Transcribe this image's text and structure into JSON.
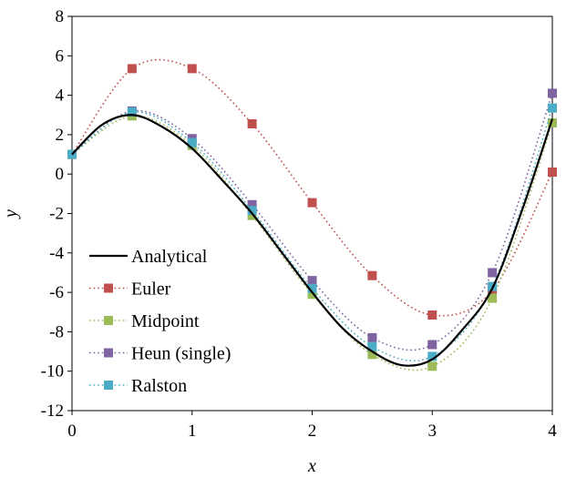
{
  "chart_data": {
    "type": "line",
    "xlabel": "x",
    "ylabel": "y",
    "xlim": [
      0,
      4
    ],
    "ylim": [
      -12,
      8
    ],
    "x_ticks": [
      0,
      1,
      2,
      3,
      4
    ],
    "y_ticks": [
      -12,
      -10,
      -8,
      -6,
      -4,
      -2,
      0,
      2,
      4,
      6,
      8
    ],
    "grid": false,
    "legend_position": "bottom-left",
    "series": [
      {
        "name": "Analytical",
        "style": "solid",
        "color": "#000000",
        "x": [
          0,
          0.25,
          0.5,
          0.75,
          1,
          1.25,
          1.5,
          1.75,
          2,
          2.25,
          2.5,
          2.75,
          3,
          3.25,
          3.5,
          3.75,
          4
        ],
        "y": [
          1,
          2.5,
          3.0,
          2.4,
          1.3,
          -0.3,
          -2.0,
          -4.0,
          -6.0,
          -7.8,
          -9.0,
          -9.7,
          -9.4,
          -7.9,
          -5.8,
          -1.8,
          2.8
        ]
      },
      {
        "name": "Euler",
        "style": "dotted",
        "color": "#c0504d",
        "x": [
          0,
          0.5,
          1,
          1.5,
          2,
          2.5,
          3,
          3.5,
          4
        ],
        "y": [
          1,
          5.35,
          5.35,
          2.55,
          -1.45,
          -5.15,
          -7.15,
          -5.9,
          0.1
        ]
      },
      {
        "name": "Midpoint",
        "style": "dotted",
        "color": "#9bbb59",
        "x": [
          0,
          0.5,
          1,
          1.5,
          2,
          2.5,
          3,
          3.5,
          4
        ],
        "y": [
          1,
          2.95,
          1.45,
          -2.1,
          -6.1,
          -9.15,
          -9.75,
          -6.3,
          2.6
        ]
      },
      {
        "name": "Heun (single)",
        "style": "dotted",
        "color": "#8064a2",
        "x": [
          0,
          0.5,
          1,
          1.5,
          2,
          2.5,
          3,
          3.5,
          4
        ],
        "y": [
          1,
          3.2,
          1.8,
          -1.55,
          -5.4,
          -8.3,
          -8.65,
          -5.0,
          4.1
        ]
      },
      {
        "name": "Ralston",
        "style": "dotted",
        "color": "#4bacc6",
        "x": [
          0,
          0.5,
          1,
          1.5,
          2,
          2.5,
          3,
          3.5,
          4
        ],
        "y": [
          1,
          3.15,
          1.6,
          -1.85,
          -5.8,
          -8.75,
          -9.25,
          -5.7,
          3.35
        ]
      }
    ]
  }
}
